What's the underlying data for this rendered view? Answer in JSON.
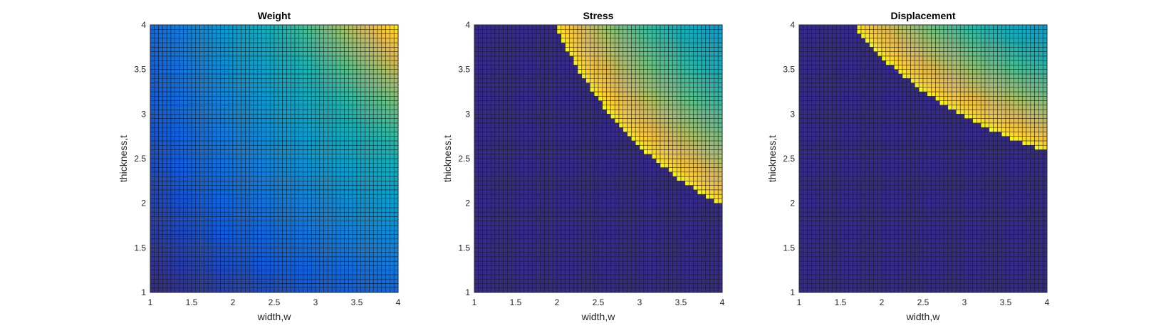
{
  "figure": {
    "colors": {
      "dark": "#352a87",
      "bright": "#f9fb0e"
    }
  },
  "chart_data": [
    {
      "type": "heatmap",
      "title": "Weight",
      "xlabel": "width,w",
      "ylabel": "thickness,t",
      "xlim": [
        1,
        4
      ],
      "ylim": [
        1,
        4
      ],
      "xticks": [
        "1",
        "1.5",
        "2",
        "2.5",
        "3",
        "3.5",
        "4"
      ],
      "yticks": [
        "1",
        "1.5",
        "2",
        "2.5",
        "3",
        "3.5",
        "4"
      ],
      "grid_cells": 60,
      "colormap": "parula",
      "field": "weight = w * t (increases toward upper-right)",
      "color_range": [
        1,
        16
      ]
    },
    {
      "type": "heatmap",
      "title": "Stress",
      "xlabel": "width,w",
      "ylabel": "thickness,t",
      "xlim": [
        1,
        4
      ],
      "ylim": [
        1,
        4
      ],
      "xticks": [
        "1",
        "1.5",
        "2",
        "2.5",
        "3",
        "3.5",
        "4"
      ],
      "yticks": [
        "1",
        "1.5",
        "2",
        "2.5",
        "3",
        "3.5",
        "4"
      ],
      "grid_cells": 60,
      "colormap": "parula",
      "feasible_boundary": {
        "form": "w * t >= c",
        "c": 7.9,
        "outside_value": "min (dark)"
      },
      "inside_trend": "brightest near boundary, decreasing toward (4,4)"
    },
    {
      "type": "heatmap",
      "title": "Displacement",
      "xlabel": "width,w",
      "ylabel": "thickness,t",
      "xlim": [
        1,
        4
      ],
      "ylim": [
        1,
        4
      ],
      "xticks": [
        "1",
        "1.5",
        "2",
        "2.5",
        "3",
        "3.5",
        "4"
      ],
      "yticks": [
        "1",
        "1.5",
        "2",
        "2.5",
        "3",
        "3.5",
        "4"
      ],
      "grid_cells": 60,
      "colormap": "parula",
      "feasible_boundary": {
        "form": "w * t^2 >= c",
        "c": 26.5,
        "outside_value": "min (dark)"
      },
      "inside_trend": "brightest near boundary, decreasing toward (4,4)"
    }
  ]
}
